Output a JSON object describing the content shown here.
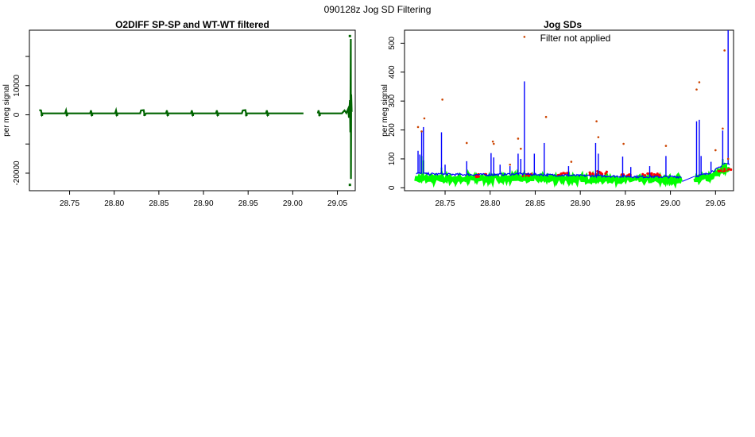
{
  "figure": {
    "super_title": "090128z   Jog SD Filtering"
  },
  "colors": {
    "dark_green": "#006400",
    "blue": "#0000ff",
    "red": "#ff0000",
    "green": "#00ff00",
    "orange_red": "#cc4400"
  },
  "chart_data": [
    {
      "type": "scatter",
      "title": "O2DIFF SP-SP and WT-WT filtered",
      "xlabel": "",
      "ylabel": "per meg signal",
      "xlim": [
        28.705,
        29.07
      ],
      "ylim": [
        -26000,
        29000
      ],
      "x_ticks": [
        28.75,
        28.8,
        28.85,
        28.9,
        28.95,
        29.0,
        29.05
      ],
      "x_tick_labels": [
        "28.75",
        "28.80",
        "28.85",
        "28.90",
        "28.95",
        "29.00",
        "29.05"
      ],
      "y_ticks": [
        -20000,
        -10000,
        0,
        10000,
        20000
      ],
      "y_tick_labels": [
        "-20000",
        "",
        "0",
        "10000",
        ""
      ],
      "grid": false,
      "series": [
        {
          "color": "#006400",
          "segments": [
            [
              [
                28.716,
                1600
              ],
              [
                28.718,
                1500
              ],
              [
                28.719,
                0
              ],
              [
                28.72,
                500
              ],
              [
                28.745,
                500
              ],
              [
                28.746,
                1500
              ],
              [
                28.747,
                0
              ],
              [
                28.748,
                500
              ],
              [
                28.773,
                500
              ],
              [
                28.774,
                1500
              ],
              [
                28.775,
                0
              ],
              [
                28.776,
                500
              ],
              [
                28.801,
                500
              ],
              [
                28.802,
                1500
              ],
              [
                28.803,
                0
              ],
              [
                28.804,
                500
              ],
              [
                28.829,
                500
              ],
              [
                28.83,
                1500
              ],
              [
                28.833,
                1600
              ],
              [
                28.834,
                0
              ],
              [
                28.836,
                500
              ],
              [
                28.858,
                500
              ],
              [
                28.859,
                1500
              ],
              [
                28.86,
                0
              ],
              [
                28.861,
                500
              ],
              [
                28.886,
                500
              ],
              [
                28.887,
                1500
              ],
              [
                28.888,
                0
              ],
              [
                28.889,
                500
              ],
              [
                28.914,
                500
              ],
              [
                28.915,
                1500
              ],
              [
                28.916,
                0
              ],
              [
                28.917,
                500
              ],
              [
                28.943,
                500
              ],
              [
                28.944,
                1500
              ],
              [
                28.947,
                1600
              ],
              [
                28.948,
                0
              ],
              [
                28.949,
                500
              ],
              [
                28.97,
                500
              ],
              [
                28.971,
                1500
              ],
              [
                28.972,
                0
              ],
              [
                28.973,
                500
              ],
              [
                29.012,
                500
              ]
            ],
            [
              [
                29.028,
                500
              ],
              [
                29.029,
                1500
              ],
              [
                29.03,
                0
              ],
              [
                29.031,
                500
              ],
              [
                29.055,
                500
              ],
              [
                29.058,
                1500
              ],
              [
                29.06,
                600
              ],
              [
                29.062,
                2000
              ],
              [
                29.063,
                -1000
              ],
              [
                29.064,
                5000
              ],
              [
                29.0645,
                -6000
              ],
              [
                29.065,
                26000
              ],
              [
                29.0652,
                -22000
              ],
              [
                29.0655,
                7000
              ],
              [
                29.066,
                1000
              ]
            ]
          ]
        }
      ],
      "points": [
        {
          "x": 29.064,
          "y": 27000
        },
        {
          "x": 29.064,
          "y": -24000
        },
        {
          "x": 28.719,
          "y": 0
        },
        {
          "x": 28.747,
          "y": 0
        },
        {
          "x": 28.775,
          "y": 0
        },
        {
          "x": 28.803,
          "y": 0
        },
        {
          "x": 28.834,
          "y": 0
        },
        {
          "x": 28.86,
          "y": 0
        },
        {
          "x": 28.888,
          "y": 0
        },
        {
          "x": 28.916,
          "y": 0
        },
        {
          "x": 28.948,
          "y": 0
        },
        {
          "x": 28.972,
          "y": 0
        },
        {
          "x": 29.03,
          "y": 0
        }
      ]
    },
    {
      "type": "line",
      "title": "Jog SDs",
      "annotation": "Filter not applied",
      "xlabel": "",
      "ylabel": "per meg signal",
      "xlim": [
        28.705,
        29.07
      ],
      "ylim": [
        -10,
        545
      ],
      "x_ticks": [
        28.75,
        28.8,
        28.85,
        28.9,
        28.95,
        29.0,
        29.05
      ],
      "x_tick_labels": [
        "28.75",
        "28.80",
        "28.85",
        "28.90",
        "28.95",
        "29.00",
        "29.05"
      ],
      "y_ticks": [
        0,
        100,
        200,
        300,
        400,
        500
      ],
      "y_tick_labels": [
        "0",
        "100",
        "200",
        "300",
        "400",
        "500"
      ],
      "grid": false,
      "series": [
        {
          "color": "#0000ff",
          "base": [
            [
              28.718,
              50
            ],
            [
              28.73,
              48
            ],
            [
              28.76,
              46
            ],
            [
              28.8,
              45
            ],
            [
              28.83,
              48
            ],
            [
              28.87,
              44
            ],
            [
              28.9,
              42
            ],
            [
              28.94,
              40
            ],
            [
              28.97,
              38
            ],
            [
              29.012,
              38
            ],
            [
              29.028,
              40
            ],
            [
              29.04,
              48
            ],
            [
              29.055,
              70
            ],
            [
              29.06,
              85
            ],
            [
              29.066,
              80
            ]
          ],
          "spikes": [
            {
              "x": 28.72,
              "y": 128
            },
            {
              "x": 28.722,
              "y": 115
            },
            {
              "x": 28.724,
              "y": 192
            },
            {
              "x": 28.726,
              "y": 210
            },
            {
              "x": 28.746,
              "y": 192
            },
            {
              "x": 28.75,
              "y": 80
            },
            {
              "x": 28.774,
              "y": 92
            },
            {
              "x": 28.801,
              "y": 120
            },
            {
              "x": 28.804,
              "y": 105
            },
            {
              "x": 28.811,
              "y": 80
            },
            {
              "x": 28.822,
              "y": 75
            },
            {
              "x": 28.831,
              "y": 118
            },
            {
              "x": 28.834,
              "y": 100
            },
            {
              "x": 28.838,
              "y": 368
            },
            {
              "x": 28.849,
              "y": 118
            },
            {
              "x": 28.86,
              "y": 155
            },
            {
              "x": 28.887,
              "y": 75
            },
            {
              "x": 28.917,
              "y": 155
            },
            {
              "x": 28.92,
              "y": 118
            },
            {
              "x": 28.947,
              "y": 108
            },
            {
              "x": 28.956,
              "y": 72
            },
            {
              "x": 28.977,
              "y": 75
            },
            {
              "x": 28.995,
              "y": 110
            },
            {
              "x": 29.029,
              "y": 230
            },
            {
              "x": 29.032,
              "y": 235
            },
            {
              "x": 29.034,
              "y": 110
            },
            {
              "x": 29.045,
              "y": 90
            },
            {
              "x": 29.058,
              "y": 198
            },
            {
              "x": 29.064,
              "y": 545
            }
          ]
        },
        {
          "color": "#00ff00",
          "base": [
            [
              28.718,
              32
            ],
            [
              28.74,
              30
            ],
            [
              28.78,
              32
            ],
            [
              28.82,
              34
            ],
            [
              28.86,
              32
            ],
            [
              28.9,
              30
            ],
            [
              28.94,
              30
            ],
            [
              28.98,
              28
            ],
            [
              29.012,
              28
            ],
            [
              29.028,
              30
            ],
            [
              29.045,
              38
            ],
            [
              29.055,
              55
            ],
            [
              29.06,
              62
            ],
            [
              29.066,
              55
            ]
          ],
          "spikes": [
            {
              "x": 28.724,
              "y": 110
            },
            {
              "x": 28.726,
              "y": 95
            },
            {
              "x": 28.746,
              "y": 70
            },
            {
              "x": 28.838,
              "y": 60
            },
            {
              "x": 29.058,
              "y": 100
            },
            {
              "x": 29.062,
              "y": 85
            }
          ]
        },
        {
          "color": "#ff0000",
          "clusters": [
            {
              "x": 28.79,
              "y": 42
            },
            {
              "x": 28.842,
              "y": 45
            },
            {
              "x": 28.88,
              "y": 48
            },
            {
              "x": 28.916,
              "y": 50
            },
            {
              "x": 28.925,
              "y": 52
            },
            {
              "x": 28.95,
              "y": 42
            },
            {
              "x": 28.975,
              "y": 46
            },
            {
              "x": 28.985,
              "y": 44
            },
            {
              "x": 29.058,
              "y": 60
            },
            {
              "x": 29.063,
              "y": 65
            }
          ]
        }
      ],
      "outlier_points": {
        "color": "#cc4400",
        "values": [
          {
            "x": 28.72,
            "y": 210
          },
          {
            "x": 28.724,
            "y": 195
          },
          {
            "x": 28.727,
            "y": 240
          },
          {
            "x": 28.747,
            "y": 305
          },
          {
            "x": 28.774,
            "y": 155
          },
          {
            "x": 28.803,
            "y": 160
          },
          {
            "x": 28.804,
            "y": 152
          },
          {
            "x": 28.822,
            "y": 80
          },
          {
            "x": 28.831,
            "y": 170
          },
          {
            "x": 28.834,
            "y": 135
          },
          {
            "x": 28.838,
            "y": 522
          },
          {
            "x": 28.862,
            "y": 245
          },
          {
            "x": 28.89,
            "y": 90
          },
          {
            "x": 28.918,
            "y": 230
          },
          {
            "x": 28.92,
            "y": 175
          },
          {
            "x": 28.948,
            "y": 152
          },
          {
            "x": 28.995,
            "y": 145
          },
          {
            "x": 29.029,
            "y": 340
          },
          {
            "x": 29.032,
            "y": 365
          },
          {
            "x": 29.06,
            "y": 475
          },
          {
            "x": 29.058,
            "y": 205
          },
          {
            "x": 29.064,
            "y": 100
          },
          {
            "x": 29.05,
            "y": 130
          }
        ]
      }
    }
  ]
}
